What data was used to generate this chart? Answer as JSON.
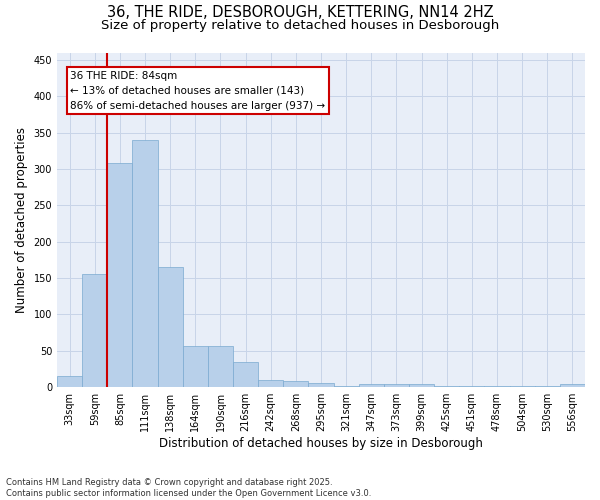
{
  "title_line1": "36, THE RIDE, DESBOROUGH, KETTERING, NN14 2HZ",
  "title_line2": "Size of property relative to detached houses in Desborough",
  "xlabel": "Distribution of detached houses by size in Desborough",
  "ylabel": "Number of detached properties",
  "categories": [
    "33sqm",
    "59sqm",
    "85sqm",
    "111sqm",
    "138sqm",
    "164sqm",
    "190sqm",
    "216sqm",
    "242sqm",
    "268sqm",
    "295sqm",
    "321sqm",
    "347sqm",
    "373sqm",
    "399sqm",
    "425sqm",
    "451sqm",
    "478sqm",
    "504sqm",
    "530sqm",
    "556sqm"
  ],
  "values": [
    15,
    155,
    308,
    340,
    165,
    57,
    57,
    35,
    10,
    8,
    6,
    2,
    5,
    5,
    5,
    2,
    2,
    2,
    2,
    2,
    4
  ],
  "bar_color": "#b8d0ea",
  "bar_edge_color": "#7aaad0",
  "grid_color": "#c8d4e8",
  "background_color": "#e8eef8",
  "vline_color": "#cc0000",
  "vline_x_idx": 1.5,
  "annotation_text": "36 THE RIDE: 84sqm\n← 13% of detached houses are smaller (143)\n86% of semi-detached houses are larger (937) →",
  "annotation_box_edgecolor": "#cc0000",
  "ylim": [
    0,
    460
  ],
  "yticks": [
    0,
    50,
    100,
    150,
    200,
    250,
    300,
    350,
    400,
    450
  ],
  "footer_line1": "Contains HM Land Registry data © Crown copyright and database right 2025.",
  "footer_line2": "Contains public sector information licensed under the Open Government Licence v3.0.",
  "title_fontsize": 10.5,
  "subtitle_fontsize": 9.5,
  "axis_label_fontsize": 8.5,
  "tick_fontsize": 7,
  "annotation_fontsize": 7.5,
  "footer_fontsize": 6
}
